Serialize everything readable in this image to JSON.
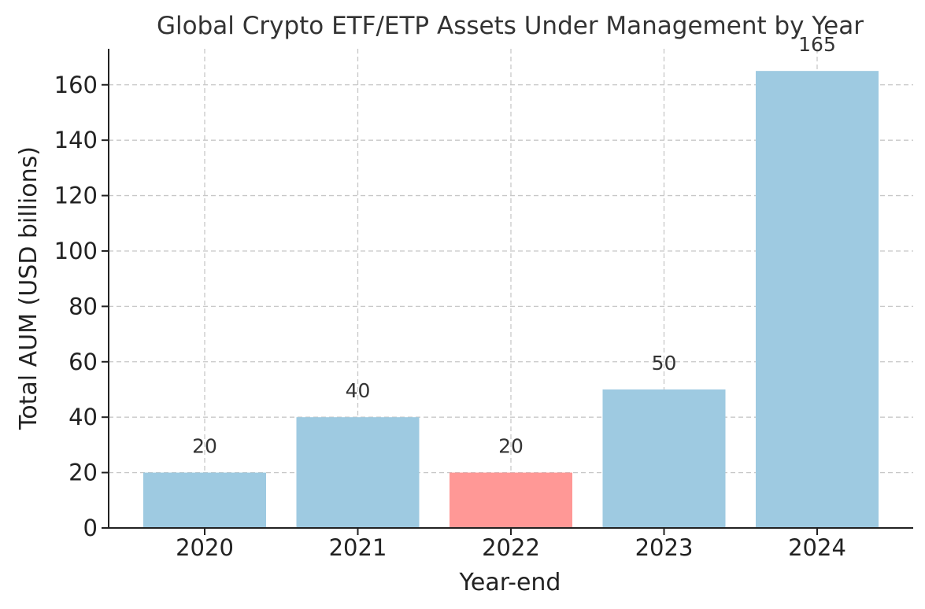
{
  "chart_data": {
    "type": "bar",
    "title": "Global Crypto ETF/ETP Assets Under Management by Year",
    "xlabel": "Year-end",
    "ylabel": "Total AUM (USD billions)",
    "categories": [
      "2020",
      "2021",
      "2022",
      "2023",
      "2024"
    ],
    "values": [
      20,
      40,
      20,
      50,
      165
    ],
    "data_labels": [
      "20",
      "40",
      "20",
      "50",
      "165"
    ],
    "bar_colors": [
      "#9ecae1",
      "#9ecae1",
      "#ff9896",
      "#9ecae1",
      "#9ecae1"
    ],
    "ylim": [
      0,
      173
    ],
    "yticks": [
      0,
      20,
      40,
      60,
      80,
      100,
      120,
      140,
      160
    ],
    "grid": true,
    "legend": null
  }
}
